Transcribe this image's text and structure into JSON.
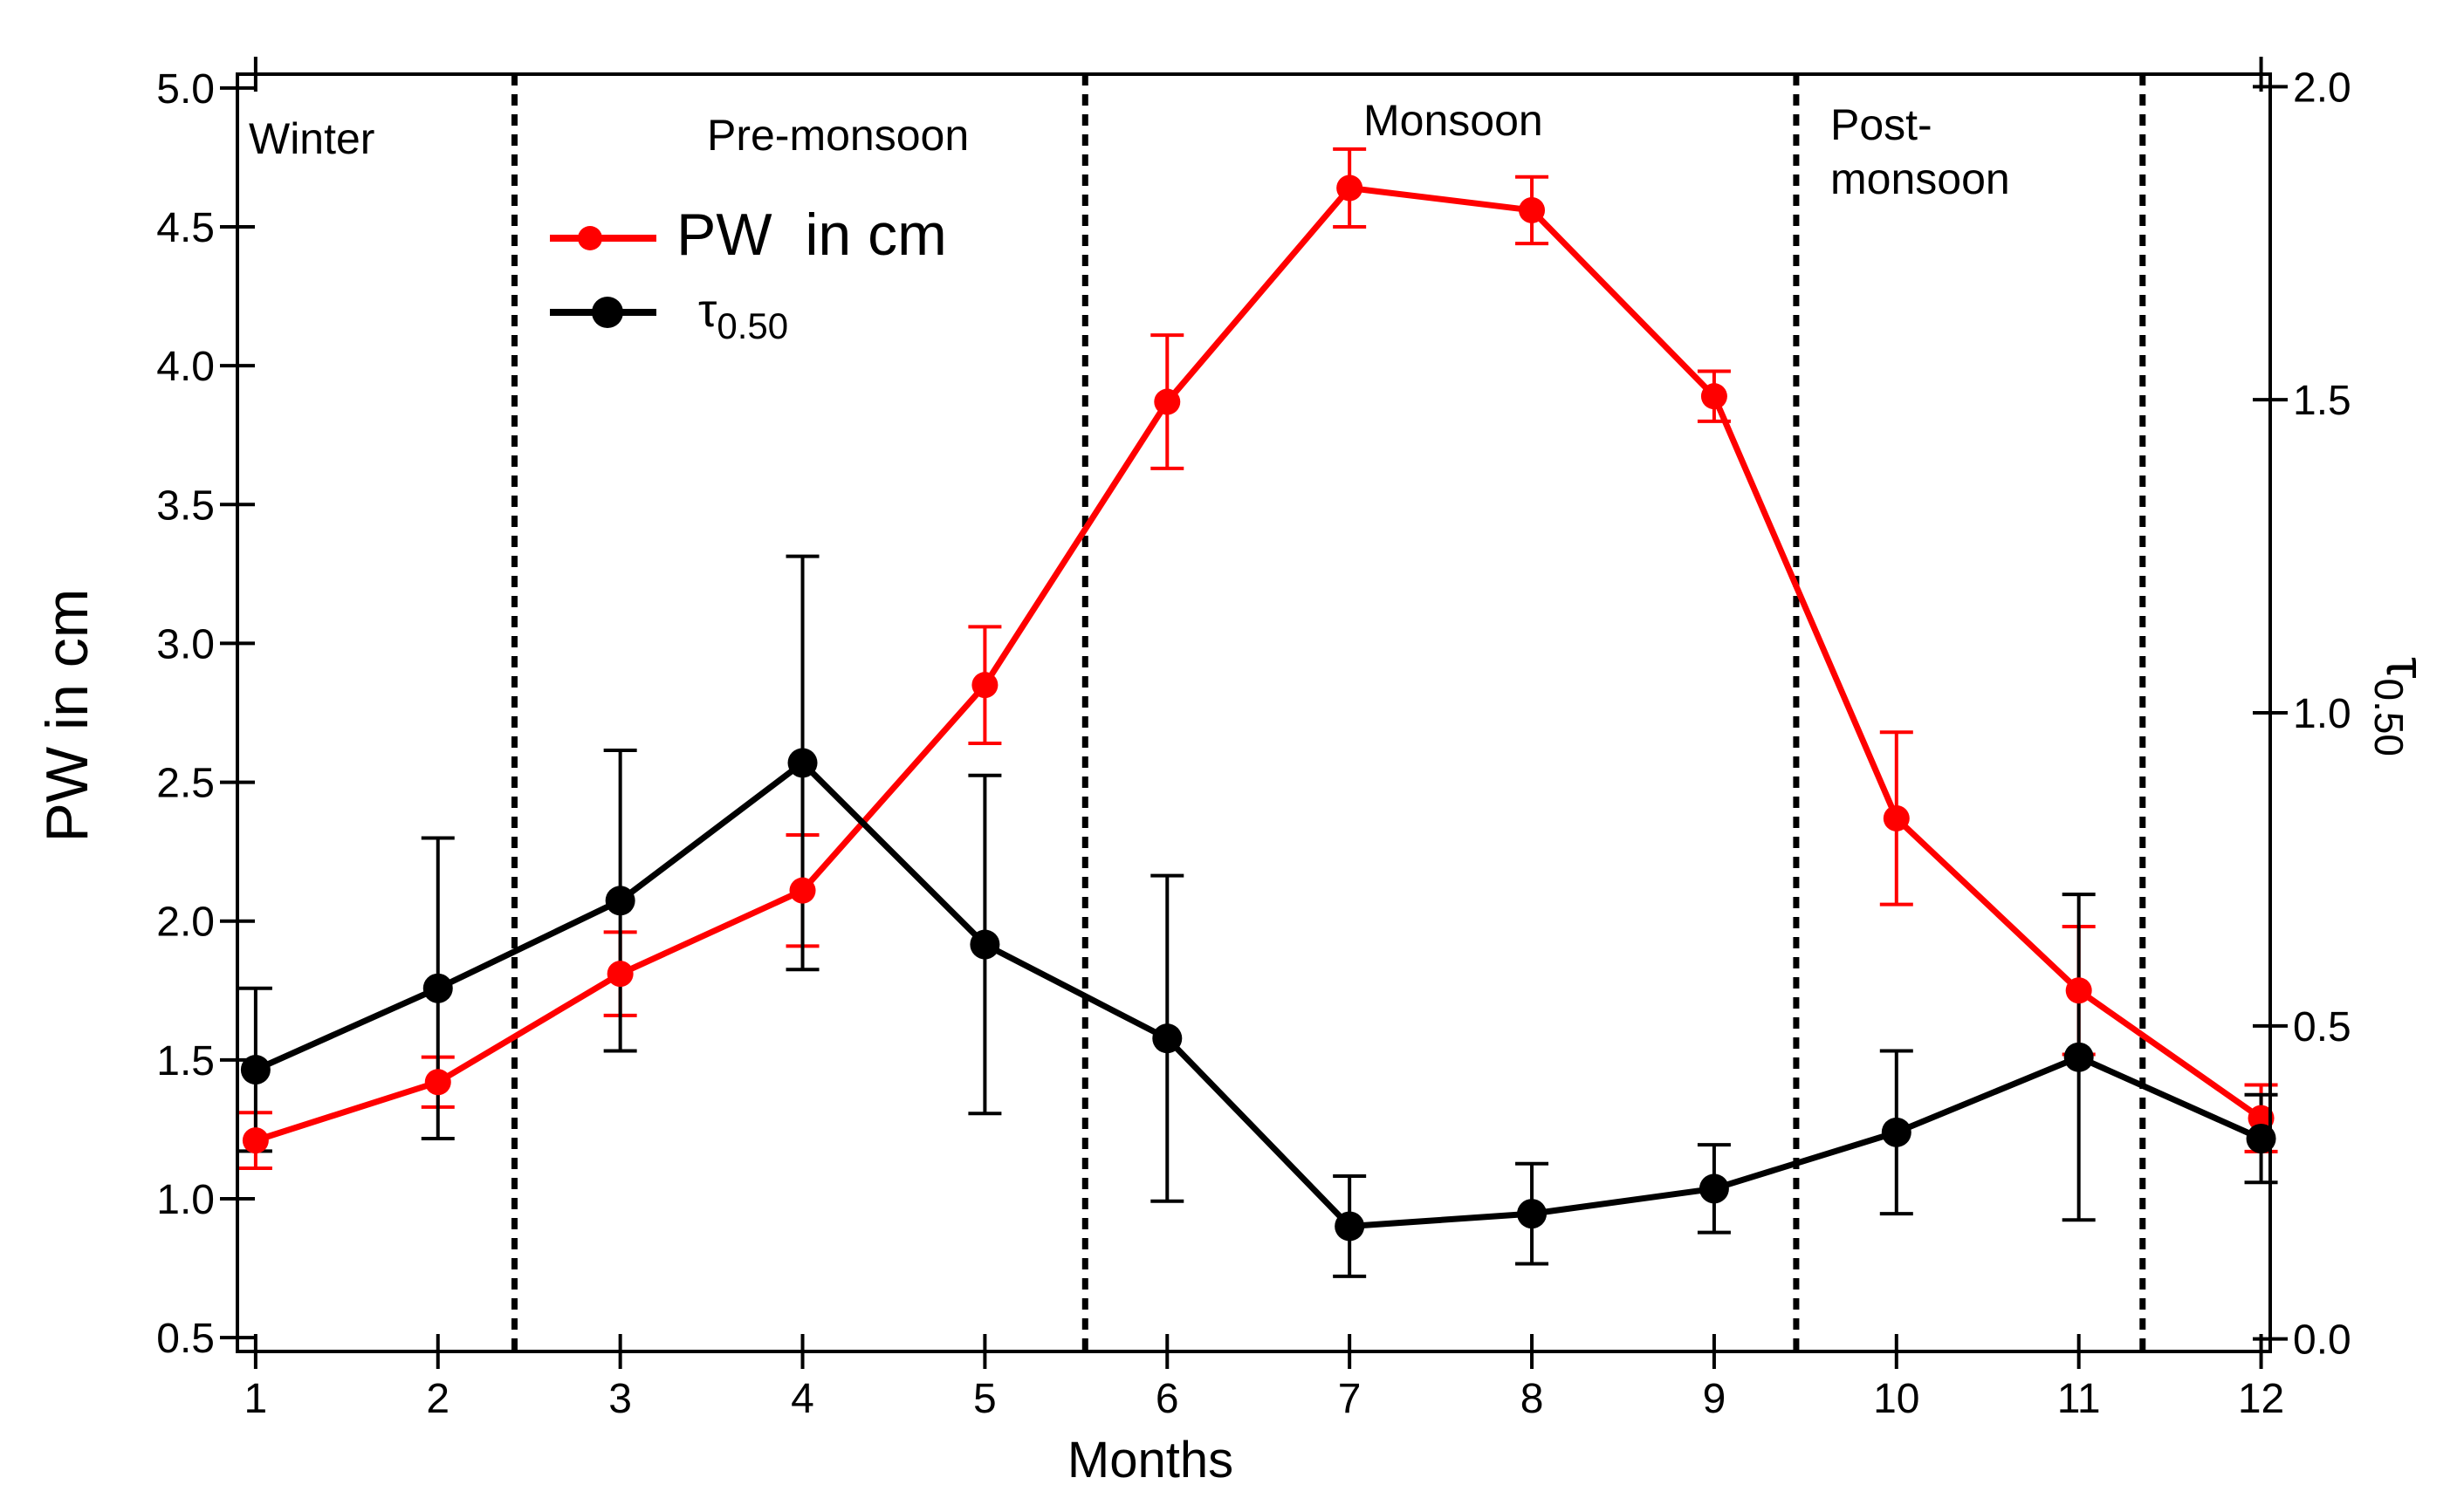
{
  "chart_data": {
    "type": "line",
    "xlabel": "Months",
    "ylabel": "PW in cm",
    "y2label_base": "τ",
    "y2label_sub": "0.50",
    "x": [
      1,
      2,
      3,
      4,
      5,
      6,
      7,
      8,
      9,
      10,
      11,
      12
    ],
    "xlim": [
      0.9,
      12.05
    ],
    "ylim": [
      0.45,
      5.05
    ],
    "y2lim": [
      -0.02,
      2.02
    ],
    "yticks": [
      "0.5",
      "1.0",
      "1.5",
      "2.0",
      "2.5",
      "3.0",
      "3.5",
      "4.0",
      "4.5",
      "5.0"
    ],
    "y2ticks": [
      "0.0",
      "0.5",
      "1.0",
      "1.5",
      "2.0"
    ],
    "xticks": [
      "1",
      "2",
      "3",
      "4",
      "5",
      "6",
      "7",
      "8",
      "9",
      "10",
      "11",
      "12"
    ],
    "season_dividers": [
      2.42,
      5.55,
      9.45,
      11.35
    ],
    "seasons": [
      {
        "label": "Winter"
      },
      {
        "label": "Pre-monsoon"
      },
      {
        "label": "Monsoon"
      },
      {
        "label": "Post-"
      },
      {
        "label": "monsoon"
      }
    ],
    "series": [
      {
        "name": "PW  in cm",
        "axis": "left",
        "color": "#ff0000",
        "values": [
          1.21,
          1.42,
          1.81,
          2.11,
          2.85,
          3.87,
          4.64,
          4.56,
          3.89,
          2.37,
          1.75,
          1.29
        ],
        "err": [
          0.1,
          0.09,
          0.15,
          0.2,
          0.21,
          0.24,
          0.14,
          0.12,
          0.09,
          0.31,
          0.23,
          0.12
        ]
      },
      {
        "name_base": "τ",
        "name_sub": "0.50",
        "axis": "right",
        "color": "#000000",
        "values": [
          0.43,
          0.56,
          0.7,
          0.92,
          0.63,
          0.48,
          0.18,
          0.2,
          0.24,
          0.33,
          0.45,
          0.32
        ],
        "err": [
          0.13,
          0.24,
          0.24,
          0.33,
          0.27,
          0.26,
          0.08,
          0.08,
          0.07,
          0.13,
          0.26,
          0.07
        ]
      }
    ]
  }
}
